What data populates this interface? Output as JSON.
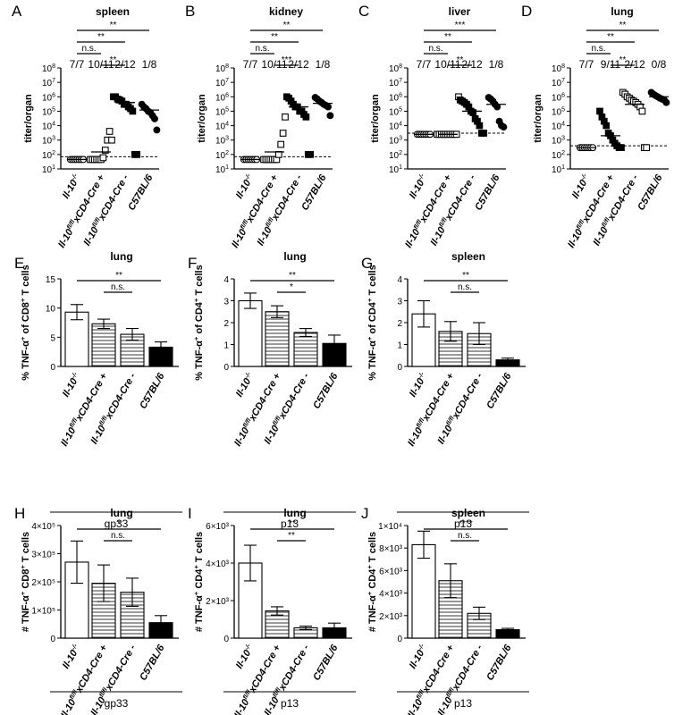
{
  "chart_data": [
    {
      "type": "scatter",
      "letter": "A",
      "title": "spleen",
      "ylabel": "titer/organ",
      "log": true,
      "ylim_exp": [
        1,
        8
      ],
      "groups": [
        "Il-10-/-",
        "Il-10fl/flxCD4-Cre +",
        "Il-10fl/flxCD4-Cre -",
        "C57BL/6"
      ],
      "counts": [
        "7/7",
        "10/11",
        "2/12",
        "1/8"
      ],
      "detection_limit": 70,
      "series": [
        {
          "marker": "circle-open",
          "values": [
            45,
            45,
            45,
            45,
            45,
            45,
            45
          ],
          "mean": 45
        },
        {
          "marker": "square-open",
          "values": [
            45,
            45,
            45,
            45,
            45,
            45,
            60,
            200,
            1000,
            4000,
            1000
          ],
          "mean": 150
        },
        {
          "marker": "square-filled",
          "values": [
            1000000,
            1000000,
            700000,
            600000,
            500000,
            300000,
            300000,
            200000,
            150000,
            100000,
            100,
            100
          ],
          "mean": 400000
        },
        {
          "marker": "circle-filled",
          "values": [
            300000,
            200000,
            150000,
            100000,
            80000,
            50000,
            30000,
            5000
          ],
          "mean": 120000
        }
      ],
      "significance": [
        {
          "label": "**",
          "from": 0,
          "to": 3
        },
        {
          "label": "**",
          "from": 0,
          "to": 2
        },
        {
          "label": "n.s.",
          "from": 0,
          "to": 1
        },
        {
          "label": "**",
          "from": 1,
          "to": 2
        }
      ]
    },
    {
      "type": "scatter",
      "letter": "B",
      "title": "kidney",
      "ylabel": "titer/organ",
      "log": true,
      "ylim_exp": [
        1,
        8
      ],
      "groups": [
        "Il-10-/-",
        "Il-10fl/flxCD4-Cre +",
        "Il-10fl/flxCD4-Cre -",
        "C57BL/6"
      ],
      "counts": [
        "7/7",
        "10/11",
        "2/12",
        "1/8"
      ],
      "detection_limit": 70,
      "series": [
        {
          "marker": "circle-open",
          "values": [
            45,
            45,
            45,
            45,
            45,
            45,
            45
          ],
          "mean": 45
        },
        {
          "marker": "square-open",
          "values": [
            45,
            45,
            45,
            45,
            45,
            45,
            45,
            100,
            500,
            3000,
            40000
          ],
          "mean": 150
        },
        {
          "marker": "square-filled",
          "values": [
            1000000,
            800000,
            500000,
            300000,
            200000,
            200000,
            100000,
            100000,
            60000,
            40000,
            100,
            100
          ],
          "mean": 200000
        },
        {
          "marker": "circle-filled",
          "values": [
            900000,
            700000,
            500000,
            400000,
            300000,
            250000,
            200000,
            50000
          ],
          "mean": 350000
        }
      ],
      "significance": [
        {
          "label": "**",
          "from": 0,
          "to": 3
        },
        {
          "label": "**",
          "from": 0,
          "to": 2
        },
        {
          "label": "n.s.",
          "from": 0,
          "to": 1
        },
        {
          "label": "***",
          "from": 1,
          "to": 2
        }
      ]
    },
    {
      "type": "scatter",
      "letter": "C",
      "title": "liver",
      "ylabel": "titer/organ",
      "log": true,
      "ylim_exp": [
        1,
        8
      ],
      "groups": [
        "Il-10-/-",
        "Il-10fl/flxCD4-Cre +",
        "Il-10fl/flxCD4-Cre -",
        "C57BL/6"
      ],
      "counts": [
        "7/7",
        "10/11",
        "2/12",
        "1/8"
      ],
      "detection_limit": 3000,
      "series": [
        {
          "marker": "circle-open",
          "values": [
            2500,
            2500,
            2500,
            2500,
            2500,
            2500,
            2500
          ],
          "mean": 2500
        },
        {
          "marker": "square-open",
          "values": [
            2500,
            2500,
            2500,
            2500,
            2500,
            2500,
            2500,
            2500,
            2500,
            2500,
            1000000
          ],
          "mean": 2500
        },
        {
          "marker": "square-filled",
          "values": [
            600000,
            500000,
            400000,
            300000,
            200000,
            100000,
            80000,
            30000,
            20000,
            10000,
            3000,
            3000
          ],
          "mean": 100000
        },
        {
          "marker": "circle-filled",
          "values": [
            900000,
            700000,
            500000,
            300000,
            200000,
            20000,
            10000,
            8000
          ],
          "mean": 300000
        }
      ],
      "significance": [
        {
          "label": "***",
          "from": 0,
          "to": 3
        },
        {
          "label": "**",
          "from": 0,
          "to": 2
        },
        {
          "label": "n.s.",
          "from": 0,
          "to": 1
        },
        {
          "label": "**",
          "from": 1,
          "to": 2
        }
      ]
    },
    {
      "type": "scatter",
      "letter": "D",
      "title": "lung",
      "ylabel": "titer/organ",
      "log": true,
      "ylim_exp": [
        1,
        8
      ],
      "groups": [
        "Il-10-/-",
        "Il-10fl/flxCD4-Cre +",
        "Il-10fl/flxCD4-Cre -",
        "C57BL/6"
      ],
      "counts": [
        "7/7",
        "9/11",
        "2/12",
        "0/8"
      ],
      "detection_limit": 400,
      "series": [
        {
          "marker": "circle-open",
          "values": [
            300,
            300,
            300,
            300,
            300,
            300,
            300
          ],
          "mean": 300
        },
        {
          "marker": "square-filled",
          "values": [
            100000,
            40000,
            20000,
            10000,
            3000,
            2000,
            1000,
            600,
            400,
            300,
            300
          ],
          "mean": 2000
        },
        {
          "marker": "square-open",
          "values": [
            2000000,
            1500000,
            1000000,
            800000,
            600000,
            500000,
            400000,
            300000,
            200000,
            100000,
            300,
            300
          ],
          "mean": 300000
        },
        {
          "marker": "circle-filled",
          "values": [
            2000000,
            1500000,
            1200000,
            1000000,
            800000,
            700000,
            600000,
            400000
          ],
          "mean": 1000000
        }
      ],
      "significance": [
        {
          "label": "**",
          "from": 0,
          "to": 3
        },
        {
          "label": "**",
          "from": 0,
          "to": 2
        },
        {
          "label": "n.s.",
          "from": 0,
          "to": 1
        },
        {
          "label": "**",
          "from": 1,
          "to": 2
        }
      ]
    },
    {
      "type": "bar",
      "letter": "E",
      "title": "lung",
      "ylabel": "% TNF-α+ of CD8+ T cells",
      "ylim": [
        0,
        15
      ],
      "yticks": [
        "0",
        "5",
        "10",
        "15"
      ],
      "categories": [
        "Il-10-/-",
        "Il-10fl/flxCD4-Cre +",
        "Il-10fl/flxCD4-Cre -",
        "C57BL/6"
      ],
      "values": [
        9.3,
        7.3,
        5.5,
        3.3
      ],
      "errors": [
        1.3,
        0.8,
        1.0,
        0.9
      ],
      "xlabel": "gp33",
      "significance": [
        {
          "label": "**",
          "from": 0,
          "to": 3
        },
        {
          "label": "n.s.",
          "from": 1,
          "to": 2
        }
      ]
    },
    {
      "type": "bar",
      "letter": "F",
      "title": "lung",
      "ylabel": "% TNF-α+ of CD4+ T cells",
      "ylim": [
        0,
        4
      ],
      "yticks": [
        "0",
        "1",
        "2",
        "3",
        "4"
      ],
      "categories": [
        "Il-10-/-",
        "Il-10fl/flxCD4-Cre +",
        "Il-10fl/flxCD4-Cre -",
        "C57BL/6"
      ],
      "values": [
        3.0,
        2.5,
        1.55,
        1.05
      ],
      "errors": [
        0.35,
        0.27,
        0.18,
        0.38
      ],
      "xlabel": "p13",
      "significance": [
        {
          "label": "**",
          "from": 0,
          "to": 3
        },
        {
          "label": "*",
          "from": 1,
          "to": 2
        }
      ]
    },
    {
      "type": "bar",
      "letter": "G",
      "title": "spleen",
      "ylabel": "% TNF-α+ of CD4+ T cells",
      "ylim": [
        0,
        4
      ],
      "yticks": [
        "0",
        "1",
        "2",
        "3",
        "4"
      ],
      "categories": [
        "Il-10-/-",
        "Il-10fl/flxCD4-Cre +",
        "Il-10fl/flxCD4-Cre -",
        "C57BL/6"
      ],
      "values": [
        2.4,
        1.6,
        1.5,
        0.3
      ],
      "errors": [
        0.6,
        0.45,
        0.5,
        0.08
      ],
      "xlabel": "p13",
      "significance": [
        {
          "label": "**",
          "from": 0,
          "to": 3
        },
        {
          "label": "n.s.",
          "from": 1,
          "to": 2
        }
      ]
    },
    {
      "type": "bar",
      "letter": "H",
      "title": "lung",
      "ylabel": "# TNF-α+ CD8+ T cells",
      "ylim": [
        0,
        400000
      ],
      "yticks": [
        "0",
        "1×10⁵",
        "2×10⁵",
        "3×10⁵",
        "4×10⁵"
      ],
      "categories": [
        "Il-10-/-",
        "Il-10fl/flxCD4-Cre +",
        "Il-10fl/flxCD4-Cre -",
        "C57BL/6"
      ],
      "values": [
        270000,
        195000,
        163000,
        55000
      ],
      "errors": [
        75000,
        65000,
        50000,
        25000
      ],
      "xlabel": "gp33",
      "significance": [
        {
          "label": "*",
          "from": 0,
          "to": 3
        },
        {
          "label": "n.s.",
          "from": 1,
          "to": 2
        }
      ]
    },
    {
      "type": "bar",
      "letter": "I",
      "title": "lung",
      "ylabel": "# TNF-α+ CD4+ T cells",
      "ylim": [
        0,
        6000
      ],
      "yticks": [
        "0",
        "2×10³",
        "4×10³",
        "6×10³"
      ],
      "categories": [
        "Il-10-/-",
        "Il-10fl/flxCD4-Cre +",
        "Il-10fl/flxCD4-Cre -",
        "C57BL/6"
      ],
      "values": [
        4000,
        1450,
        550,
        550
      ],
      "errors": [
        950,
        220,
        90,
        250
      ],
      "xlabel": "p13",
      "significance": [
        {
          "label": "**",
          "from": 0,
          "to": 3
        },
        {
          "label": "**",
          "from": 1,
          "to": 2
        }
      ]
    },
    {
      "type": "bar",
      "letter": "J",
      "title": "spleen",
      "ylabel": "# TNF-α+ CD4+ T cells",
      "ylim": [
        0,
        10000
      ],
      "yticks": [
        "0",
        "2×10³",
        "4×10³",
        "6×10³",
        "8×10³",
        "1×10⁴"
      ],
      "categories": [
        "Il-10-/-",
        "Il-10fl/flxCD4-Cre +",
        "Il-10fl/flxCD4-Cre -",
        "C57BL/6"
      ],
      "values": [
        8300,
        5100,
        2200,
        750
      ],
      "errors": [
        1200,
        1500,
        550,
        120
      ],
      "xlabel": "p13",
      "significance": [
        {
          "label": "****",
          "from": 0,
          "to": 3
        },
        {
          "label": "n.s.",
          "from": 1,
          "to": 2
        }
      ]
    }
  ]
}
